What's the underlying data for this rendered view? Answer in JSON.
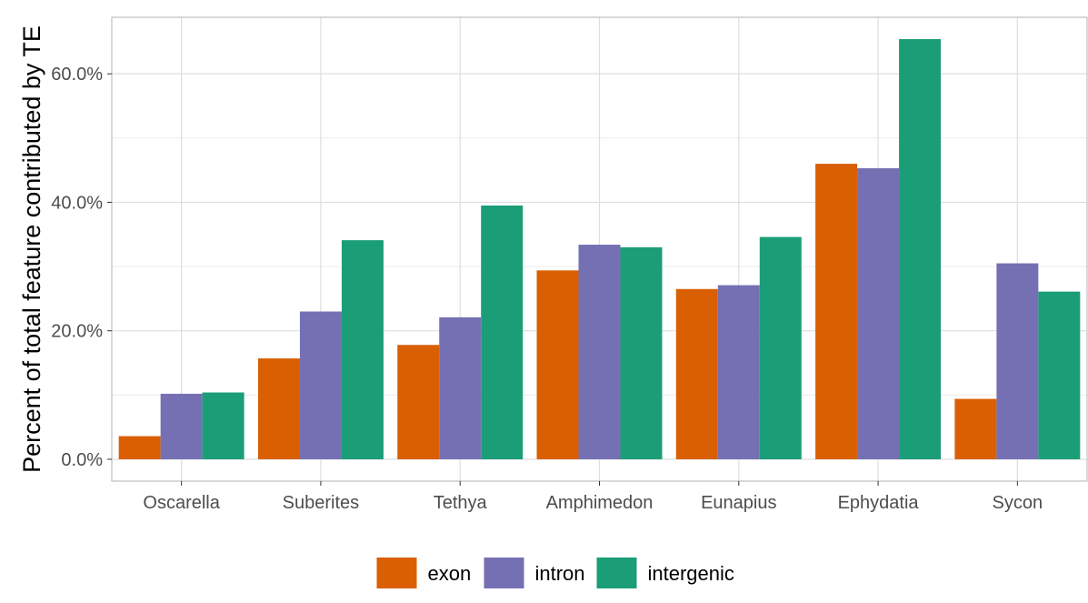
{
  "chart_data": {
    "type": "bar",
    "title": "",
    "xlabel": "",
    "ylabel": "Percent of total feature contributed by TE",
    "categories": [
      "Oscarella",
      "Suberites",
      "Tethya",
      "Amphimedon",
      "Eunapius",
      "Ephydatia",
      "Sycon"
    ],
    "series": [
      {
        "name": "exon",
        "color": "#D95F02",
        "values": [
          3.6,
          15.7,
          17.8,
          29.4,
          26.5,
          46.0,
          9.4
        ]
      },
      {
        "name": "intron",
        "color": "#7570B3",
        "values": [
          10.2,
          23.0,
          22.1,
          33.4,
          27.1,
          45.3,
          30.5
        ]
      },
      {
        "name": "intergenic",
        "color": "#1B9E77",
        "values": [
          10.4,
          34.1,
          39.5,
          33.0,
          34.6,
          65.4,
          26.1
        ]
      }
    ],
    "yticks": [
      0,
      20,
      40,
      60
    ],
    "ytick_labels": [
      "0.0%",
      "20.0%",
      "40.0%",
      "60.0%"
    ],
    "ylim": [
      -3.4,
      68.8
    ],
    "grid": true,
    "legend_position": "bottom"
  }
}
